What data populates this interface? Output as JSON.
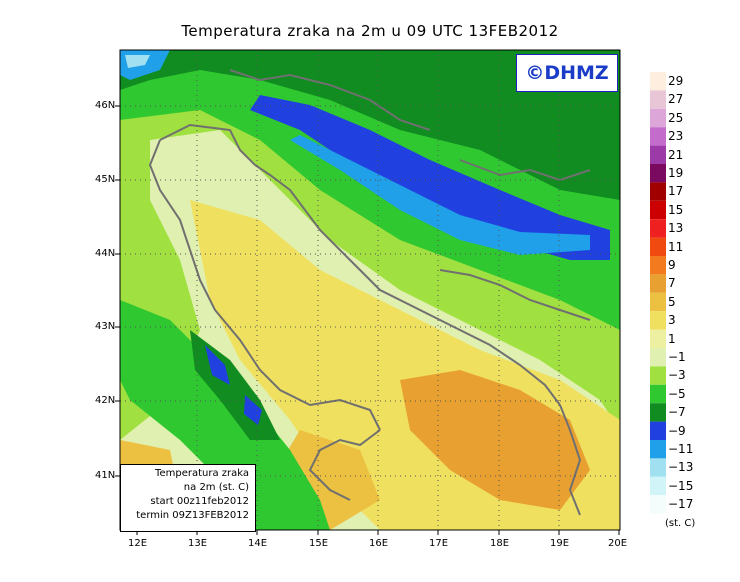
{
  "title": "Temperatura zraka na 2m u 09 UTC 13FEB2012",
  "logo": "©DHMZ",
  "infobox": {
    "line1": "Temperatura zraka",
    "line2": "na 2m (st. C)",
    "line3": "start 00z11feb2012",
    "line4": "termin 09Z13FEB2012"
  },
  "lat_labels": [
    "46N",
    "45N",
    "44N",
    "43N",
    "42N",
    "41N"
  ],
  "lon_labels": [
    "12E",
    "13E",
    "14E",
    "15E",
    "16E",
    "17E",
    "18E",
    "19E",
    "20E"
  ],
  "colorbar": {
    "unit": "(st. C)",
    "labels": [
      "29",
      "27",
      "25",
      "23",
      "21",
      "19",
      "17",
      "15",
      "13",
      "11",
      "9",
      "7",
      "5",
      "3",
      "1",
      "−1",
      "−3",
      "−5",
      "−7",
      "−9",
      "−11",
      "−13",
      "−15",
      "−17"
    ],
    "colors": [
      "#fdeee0",
      "#e8c6d6",
      "#dda6d8",
      "#c46ccc",
      "#9c3aa8",
      "#7a0a60",
      "#a00000",
      "#cc0000",
      "#ee2020",
      "#f04a10",
      "#f47a20",
      "#e8a030",
      "#ecc040",
      "#f0e060",
      "#ecf0a0",
      "#e0f0b0",
      "#a0e040",
      "#30c830",
      "#108c20",
      "#2040e0",
      "#20a0e8",
      "#a0e0f0",
      "#d0f4f8",
      "#f4fcfc"
    ]
  }
}
